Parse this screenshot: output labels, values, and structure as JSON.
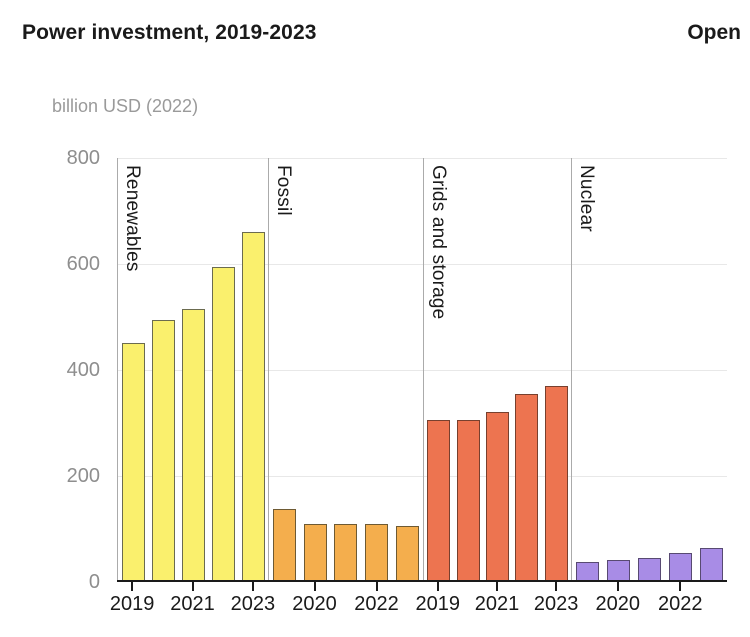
{
  "header": {
    "title": "Power investment, 2019-2023",
    "open_label": "Open"
  },
  "chart_data": {
    "type": "bar",
    "title": "Power investment, 2019-2023",
    "ylabel": "billion USD (2022)",
    "ylim": [
      0,
      800
    ],
    "yticks": [
      0,
      200,
      400,
      600,
      800
    ],
    "grid": true,
    "legend_position": "none",
    "years": [
      "2019",
      "2020",
      "2021",
      "2022",
      "2023"
    ],
    "groups": [
      {
        "name": "Renewables",
        "fill": "#faf06d",
        "stroke": "#6b6b4f",
        "values": [
          450,
          495,
          515,
          595,
          660
        ],
        "labeled_year_indexes": [
          0,
          2,
          4
        ]
      },
      {
        "name": "Fossil",
        "fill": "#f4ae4d",
        "stroke": "#6e5a33",
        "values": [
          138,
          110,
          110,
          110,
          106
        ],
        "labeled_year_indexes": [
          1,
          3
        ]
      },
      {
        "name": "Grids and storage",
        "fill": "#ed7450",
        "stroke": "#77402e",
        "values": [
          305,
          305,
          320,
          355,
          370
        ],
        "labeled_year_indexes": [
          0,
          2,
          4
        ]
      },
      {
        "name": "Nuclear",
        "fill": "#a88ce6",
        "stroke": "#584a72",
        "values": [
          38,
          41,
          46,
          54,
          64
        ],
        "labeled_year_indexes": [
          1,
          3
        ]
      }
    ],
    "colors": {
      "axis": "#1a1a1a",
      "gridline": "#e8e8e8",
      "separator": "#ababab",
      "y_tick_label": "#8e8e8e",
      "x_tick_label": "#1a1a1a"
    }
  }
}
